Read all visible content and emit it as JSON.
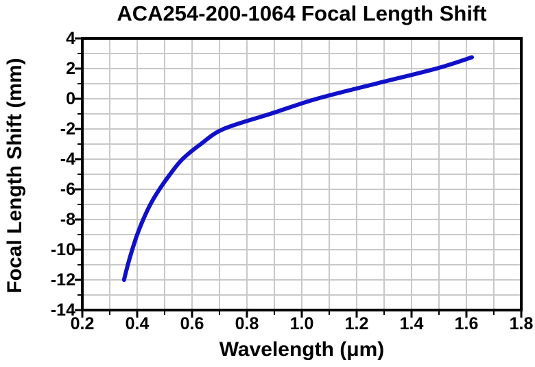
{
  "chart_data": {
    "type": "line",
    "title": "ACA254-200-1064 Focal Length Shift",
    "xlabel": "Wavelength (μm)",
    "ylabel": "Focal Length Shift (mm)",
    "xlim": [
      0.2,
      1.8
    ],
    "ylim": [
      -14,
      4
    ],
    "x_tick_values": [
      0.2,
      0.4,
      0.6,
      0.8,
      1.0,
      1.2,
      1.4,
      1.6,
      1.8
    ],
    "x_tick_labels": [
      "0.2",
      "0.4",
      "0.6",
      "0.8",
      "1.0",
      "1.2",
      "1.4",
      "1.6",
      "1.8"
    ],
    "x_minor_step": 0.1,
    "y_tick_values": [
      4,
      2,
      0,
      -2,
      -4,
      -6,
      -8,
      -10,
      -12,
      -14
    ],
    "y_tick_labels": [
      "4",
      "2",
      "0",
      "-2",
      "-4",
      "-6",
      "-8",
      "-10",
      "-12",
      "-14"
    ],
    "y_minor_step": 1,
    "grid": "minor-both-gray",
    "legend": "none",
    "colors": {
      "curve": "#1010c8",
      "grid": "#c8c8c8",
      "axis": "#000000",
      "background": "#ffffff"
    },
    "series": [
      {
        "points": [
          [
            0.352,
            -12.0
          ],
          [
            0.366,
            -11.0
          ],
          [
            0.382,
            -10.0
          ],
          [
            0.4,
            -9.0
          ],
          [
            0.422,
            -8.0
          ],
          [
            0.448,
            -7.0
          ],
          [
            0.481,
            -6.0
          ],
          [
            0.52,
            -5.0
          ],
          [
            0.565,
            -4.0
          ],
          [
            0.632,
            -3.0
          ],
          [
            0.715,
            -2.0
          ],
          [
            0.885,
            -1.0
          ],
          [
            1.055,
            0.0
          ],
          [
            1.27,
            1.0
          ],
          [
            1.49,
            2.0
          ],
          [
            1.62,
            2.75
          ]
        ]
      }
    ]
  }
}
